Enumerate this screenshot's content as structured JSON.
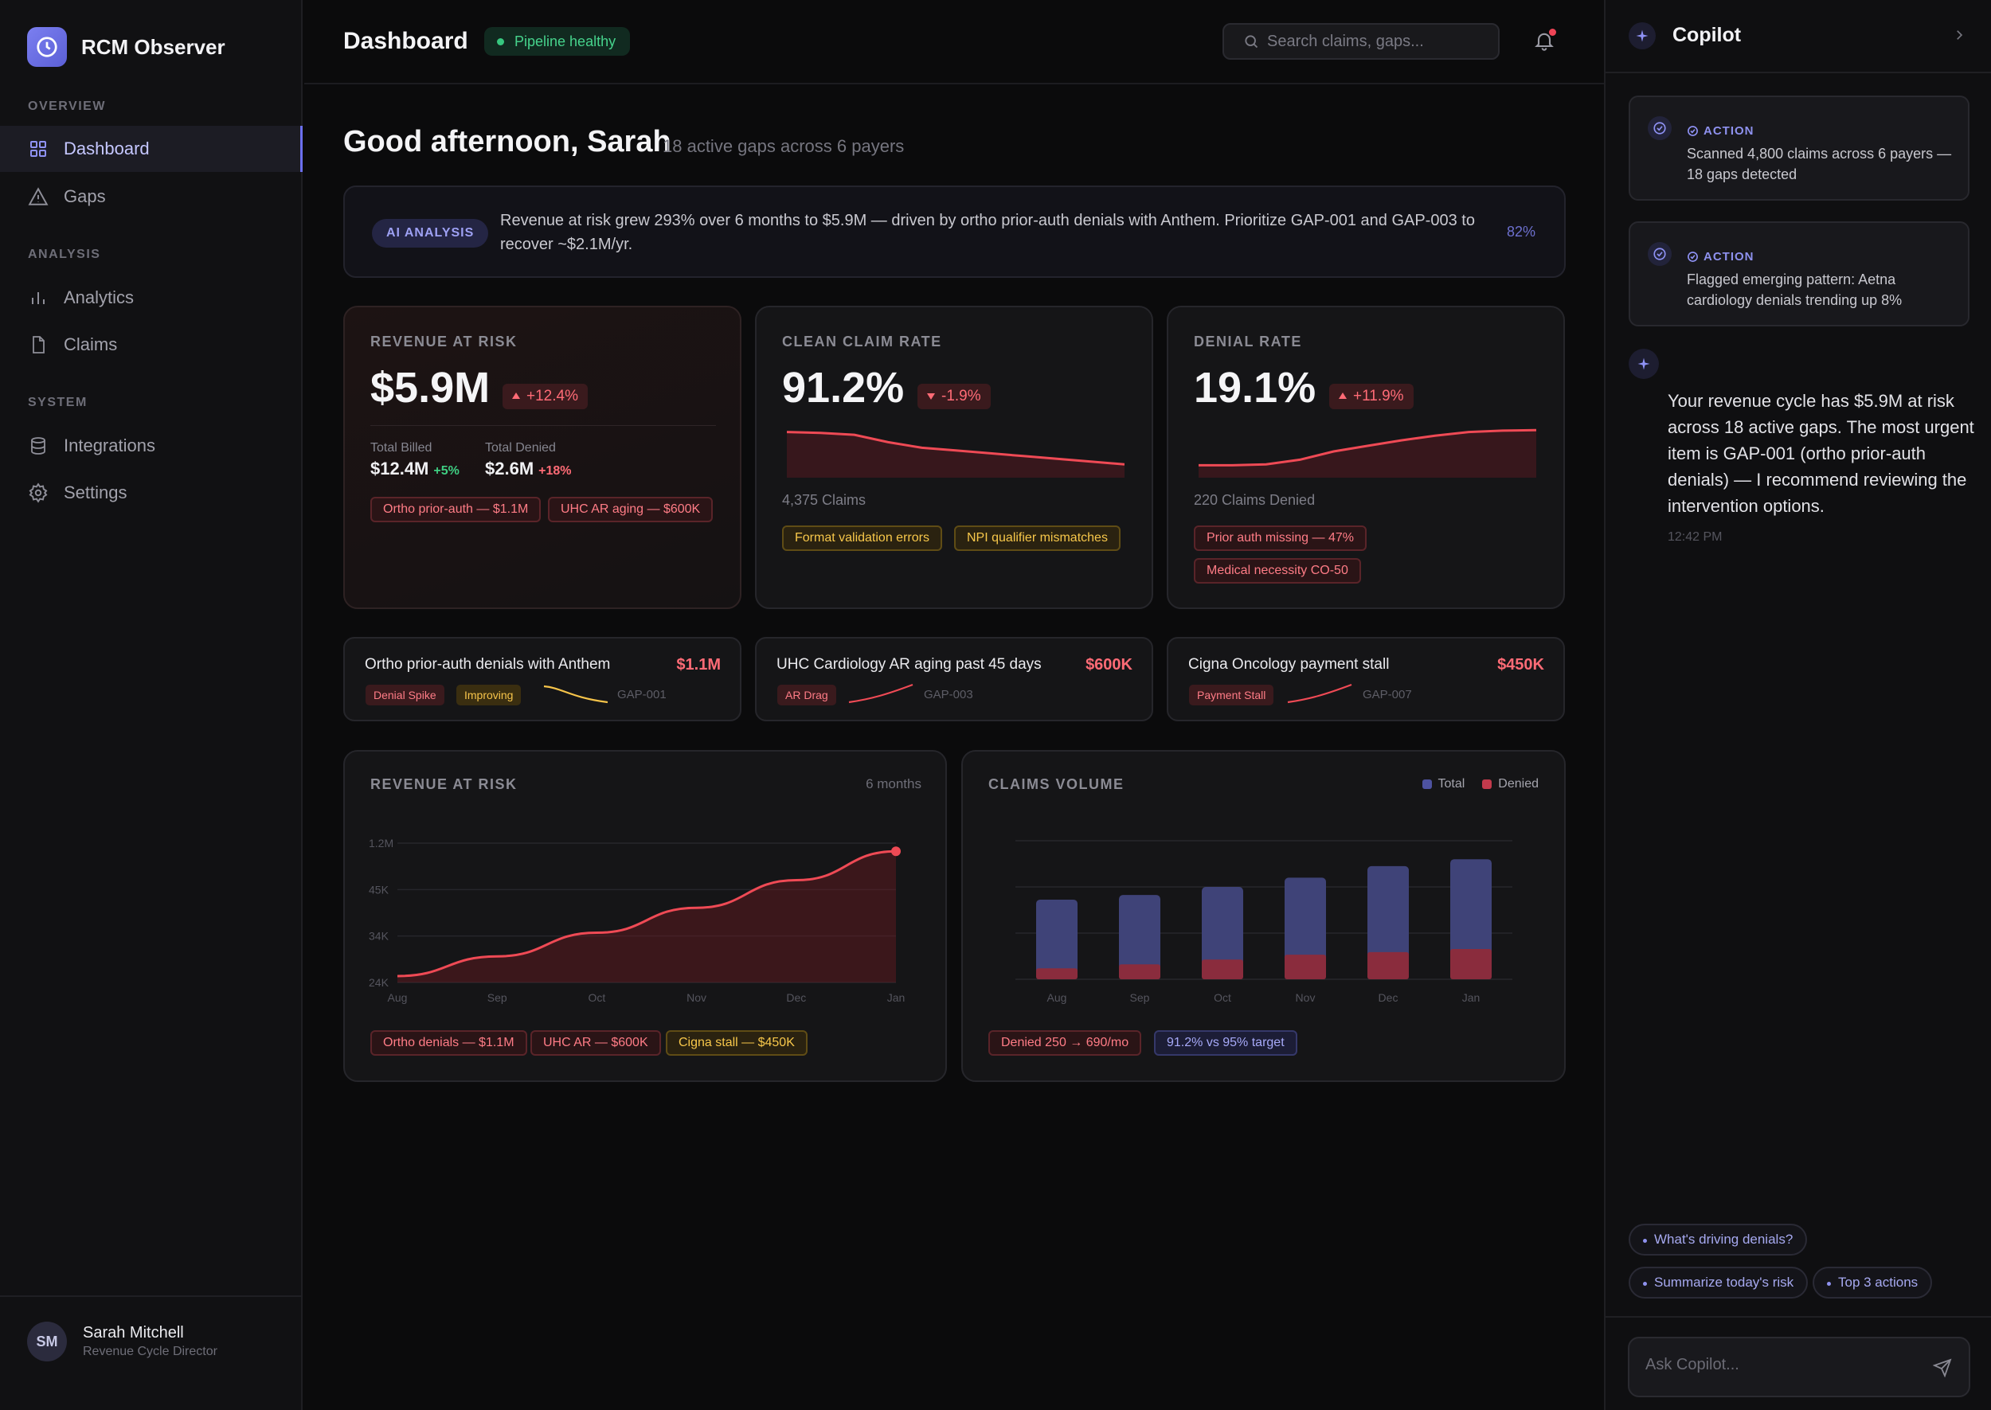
{
  "app": {
    "name": "RCM Observer",
    "logo_icon": "clock-icon",
    "accent": "#6b6ff0"
  },
  "sidebar": {
    "sections": [
      {
        "label": "OVERVIEW",
        "items": [
          {
            "label": "Dashboard",
            "icon": "grid-icon",
            "active": true
          },
          {
            "label": "Gaps",
            "icon": "warning-triangle-icon"
          }
        ]
      },
      {
        "label": "ANALYSIS",
        "items": [
          {
            "label": "Analytics",
            "icon": "bar-chart-icon"
          },
          {
            "label": "Claims",
            "icon": "document-icon"
          }
        ]
      },
      {
        "label": "SYSTEM",
        "items": [
          {
            "label": "Integrations",
            "icon": "database-icon"
          },
          {
            "label": "Settings",
            "icon": "gear-icon"
          }
        ]
      }
    ],
    "user": {
      "initials": "SM",
      "name": "Sarah Mitchell",
      "role": "Revenue Cycle Director"
    }
  },
  "header": {
    "title": "Dashboard",
    "status": "Pipeline healthy",
    "search_placeholder": "Search claims, gaps...",
    "has_notification": true
  },
  "main": {
    "greeting": "Good afternoon, Sarah",
    "greeting_sub": "18 active gaps across 6 payers",
    "ai": {
      "badge": "AI ANALYSIS",
      "text": "Revenue at risk grew 293% over 6 months to $5.9M — driven by ortho prior-auth denials with Anthem. Prioritize GAP-001 and GAP-003 to recover ~$2.1M/yr.",
      "confidence": "82%"
    },
    "kpis": {
      "revenue": {
        "label": "REVENUE AT RISK",
        "value": "$5.9M",
        "delta": "+12.4%",
        "billed_label": "Total Billed",
        "billed_value": "$12.4M",
        "billed_delta": "+5%",
        "denied_label": "Total Denied",
        "denied_value": "$2.6M",
        "denied_delta": "+18%",
        "tags": [
          "Ortho prior-auth — $1.1M",
          "UHC AR aging — $600K"
        ]
      },
      "clean": {
        "label": "CLEAN CLAIM RATE",
        "value": "91.2%",
        "delta": "-1.9%",
        "caption": "4,375 Claims",
        "tags": [
          "Format validation errors",
          "NPI qualifier mismatches"
        ],
        "trend": [
          0.92,
          0.9,
          0.86,
          0.7,
          0.58,
          0.52,
          0.46,
          0.4,
          0.34,
          0.28,
          0.22
        ]
      },
      "denial": {
        "label": "DENIAL RATE",
        "value": "19.1%",
        "delta": "+11.9%",
        "caption": "220 Claims Denied",
        "tags": [
          "Prior auth missing — 47%",
          "Medical necessity CO-50"
        ],
        "trend": [
          0.2,
          0.2,
          0.22,
          0.32,
          0.5,
          0.62,
          0.74,
          0.84,
          0.92,
          0.95,
          0.96
        ]
      }
    },
    "gaps": [
      {
        "title": "Ortho prior-auth denials with Anthem",
        "amount": "$1.1M",
        "tags": [
          {
            "text": "Denial Spike",
            "tone": "red"
          },
          {
            "text": "Improving",
            "tone": "amber"
          }
        ],
        "id": "GAP-001",
        "trend_dir": "down",
        "trend_color": "#f6c44a"
      },
      {
        "title": "UHC Cardiology AR aging past 45 days",
        "amount": "$600K",
        "tags": [
          {
            "text": "AR Drag",
            "tone": "red"
          }
        ],
        "id": "GAP-003",
        "trend_dir": "up",
        "trend_color": "#ef4a55"
      },
      {
        "title": "Cigna Oncology payment stall",
        "amount": "$450K",
        "tags": [
          {
            "text": "Payment Stall",
            "tone": "red"
          }
        ],
        "id": "GAP-007",
        "trend_dir": "up",
        "trend_color": "#ef4a55"
      }
    ],
    "revenue_chart": {
      "title": "REVENUE AT RISK",
      "period": "6 months",
      "tags": [
        "Ortho denials — $1.1M",
        "UHC AR — $600K",
        "Cigna stall — $450K"
      ]
    },
    "claims_chart": {
      "title": "CLAIMS VOLUME",
      "legend": {
        "total": "Total",
        "denied": "Denied"
      },
      "tags": [
        "Denied 250 → 690/mo",
        "91.2% vs 95% target"
      ]
    }
  },
  "chart_data": [
    {
      "type": "area",
      "title": "REVENUE AT RISK",
      "categories": [
        "Aug",
        "Sep",
        "Oct",
        "Nov",
        "Dec",
        "Jan"
      ],
      "yticks": [
        "1.2M",
        "45K",
        "34K",
        "24K"
      ],
      "values": [
        0.0,
        0.15,
        0.33,
        0.52,
        0.73,
        0.95
      ],
      "color": "#ef4a55"
    },
    {
      "type": "bar",
      "title": "CLAIMS VOLUME",
      "categories": [
        "Aug",
        "Sep",
        "Oct",
        "Nov",
        "Dec",
        "Jan"
      ],
      "series": [
        {
          "name": "Total",
          "values": [
            3450,
            3650,
            4000,
            4400,
            4900,
            5200
          ],
          "color": "#3f4378"
        },
        {
          "name": "Denied",
          "values": [
            250,
            340,
            450,
            560,
            620,
            690
          ],
          "color": "#8a2c3d"
        }
      ],
      "ylim": [
        0,
        6000
      ]
    }
  ],
  "copilot": {
    "title": "Copilot",
    "actions": [
      {
        "label": "ACTION",
        "text": "Scanned 4,800 claims across 6 payers — 18 gaps detected"
      },
      {
        "label": "ACTION",
        "text": "Flagged emerging pattern: Aetna cardiology denials trending up 8%"
      }
    ],
    "message": "Your revenue cycle has $5.9M at risk across 18 active gaps. The most urgent item is GAP-001 (ortho prior-auth denials) — I recommend reviewing the intervention options.",
    "time": "12:42 PM",
    "chips": [
      "What's driving denials?",
      "Summarize today's risk",
      "Top 3 actions"
    ],
    "input_placeholder": "Ask Copilot..."
  }
}
